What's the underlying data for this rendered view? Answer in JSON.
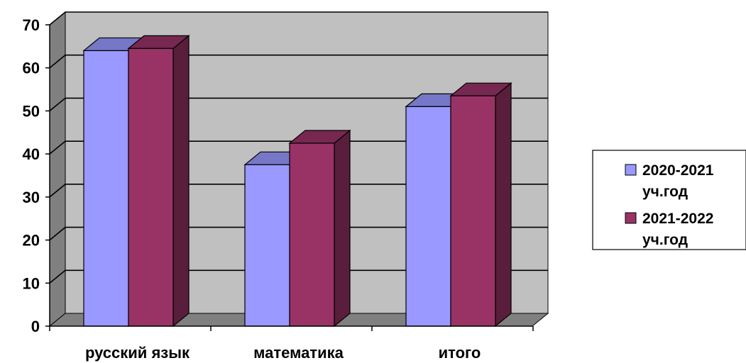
{
  "chart_data": {
    "type": "bar",
    "style": "3d-clustered-column",
    "categories": [
      "русский язык",
      "математика",
      "итого"
    ],
    "series": [
      {
        "name": "2020-2021 уч.год",
        "name_lines": [
          "2020-2021",
          "уч.год"
        ],
        "values": [
          64,
          37.5,
          51
        ],
        "color": "#9999FF"
      },
      {
        "name": "2021-2022 уч.год",
        "name_lines": [
          "2021-2022",
          "уч.год"
        ],
        "values": [
          64.5,
          42.5,
          53.5
        ],
        "color": "#993366"
      }
    ],
    "ylim": [
      0,
      70
    ],
    "yticks": [
      0,
      10,
      20,
      30,
      40,
      50,
      60,
      70
    ],
    "grid": true,
    "legend_position": "right",
    "colors": {
      "wall": "#C0C0C0",
      "floor": "#808080",
      "grid": "#000000"
    }
  }
}
